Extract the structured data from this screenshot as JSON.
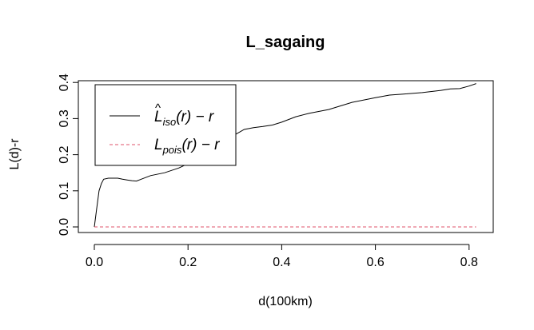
{
  "chart_data": {
    "type": "line",
    "title": "L_sagaing",
    "xlabel": "d(100km)",
    "ylabel": "L(d)-r",
    "xlim": [
      0,
      0.83
    ],
    "ylim": [
      -0.012,
      0.405
    ],
    "x_ticks": [
      "0.0",
      "0.2",
      "0.4",
      "0.6",
      "0.8"
    ],
    "y_ticks": [
      "0.0",
      "0.1",
      "0.2",
      "0.3",
      "0.4"
    ],
    "legend_position": "top-left",
    "series": [
      {
        "name": "L̂iso(r) − r",
        "legend_main": "L",
        "legend_hat": "^",
        "legend_sub": "iso",
        "legend_tail": "(r) − r",
        "color": "#000000",
        "style": "solid",
        "x": [
          0,
          0.005,
          0.01,
          0.015,
          0.02,
          0.03,
          0.04,
          0.05,
          0.06,
          0.07,
          0.08,
          0.09,
          0.1,
          0.12,
          0.15,
          0.18,
          0.2,
          0.22,
          0.24,
          0.26,
          0.28,
          0.3,
          0.32,
          0.34,
          0.36,
          0.38,
          0.4,
          0.43,
          0.46,
          0.5,
          0.55,
          0.6,
          0.63,
          0.66,
          0.7,
          0.74,
          0.76,
          0.78,
          0.8,
          0.815
        ],
        "y": [
          0,
          0.05,
          0.1,
          0.12,
          0.132,
          0.135,
          0.135,
          0.135,
          0.132,
          0.13,
          0.128,
          0.127,
          0.132,
          0.142,
          0.15,
          0.163,
          0.175,
          0.195,
          0.222,
          0.232,
          0.24,
          0.255,
          0.27,
          0.275,
          0.278,
          0.282,
          0.29,
          0.305,
          0.315,
          0.325,
          0.345,
          0.358,
          0.365,
          0.368,
          0.372,
          0.378,
          0.382,
          0.383,
          0.39,
          0.397
        ]
      },
      {
        "name": "Lpois(r) − r",
        "legend_main": "L",
        "legend_sub": "pois",
        "legend_tail": "(r) − r",
        "color": "#df536b",
        "style": "dashed",
        "x": [
          0,
          0.815
        ],
        "y": [
          0,
          0
        ]
      }
    ]
  }
}
